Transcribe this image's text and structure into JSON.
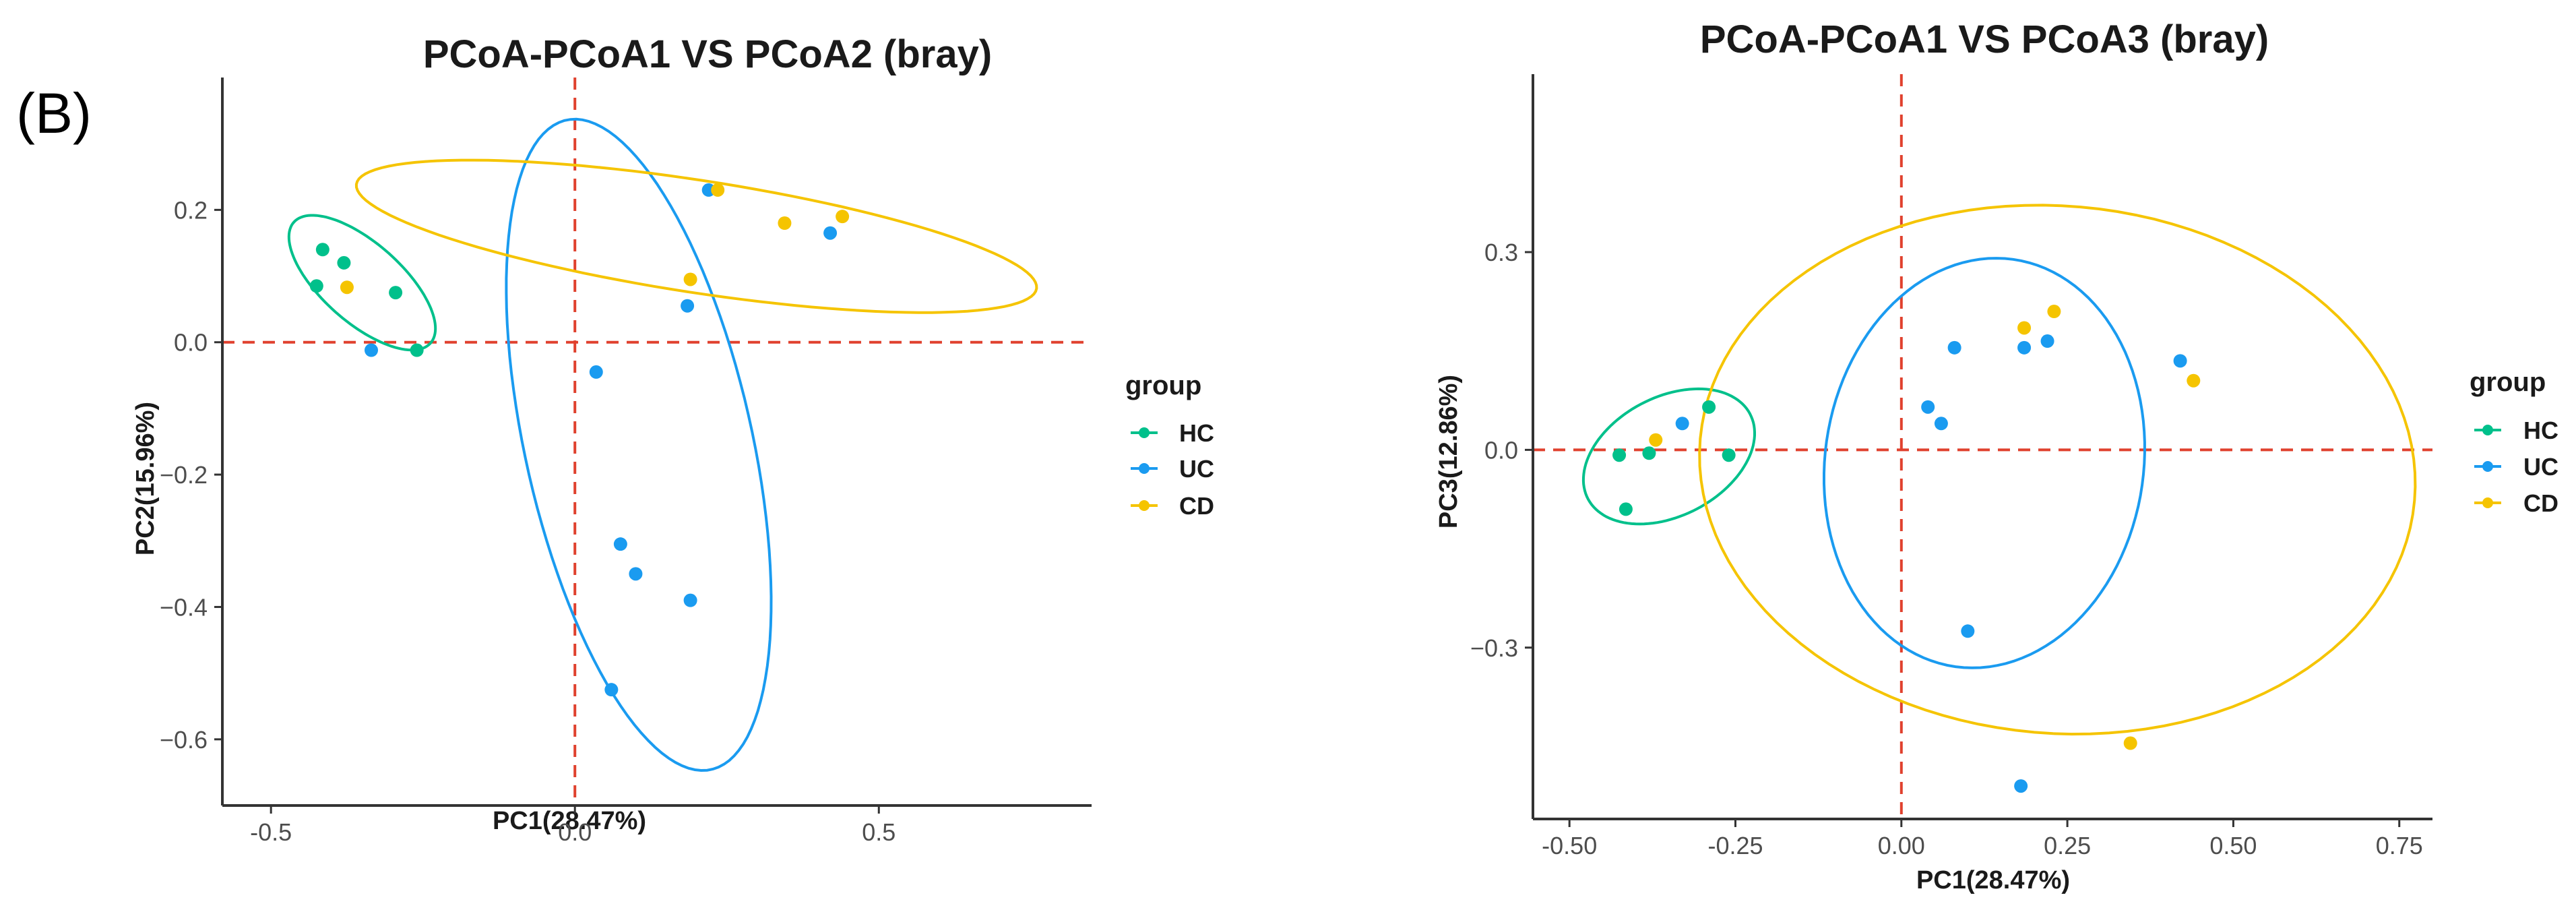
{
  "panel_label": "(B)",
  "colors": {
    "HC": "#00c08b",
    "UC": "#1a9bf0",
    "CD": "#f5c400",
    "refline": "#e0412e",
    "axis": "#333333"
  },
  "chart_data": [
    {
      "type": "scatter",
      "title": "PCoA-PCoA1 VS PCoA2 (bray)",
      "xlabel": "PC1(28.47%)",
      "ylabel": "PC2(15.96%)",
      "xlim": [
        -0.58,
        0.85
      ],
      "ylim": [
        -0.7,
        0.4
      ],
      "xticks": [
        -0.5,
        0.0,
        0.5
      ],
      "xtick_labels": [
        "-0.5",
        "0.0",
        "0.5"
      ],
      "yticks": [
        0.2,
        0.0,
        -0.2,
        -0.4,
        -0.6
      ],
      "ytick_labels": [
        "0.2",
        "0.0",
        "−0.2",
        "−0.4",
        "−0.6"
      ],
      "legend_title": "group",
      "legend": [
        "HC",
        "UC",
        "CD"
      ],
      "series": [
        {
          "name": "HC",
          "points": [
            [
              -0.415,
              0.14
            ],
            [
              -0.38,
              0.12
            ],
            [
              -0.425,
              0.085
            ],
            [
              -0.295,
              0.075
            ],
            [
              -0.26,
              -0.012
            ]
          ]
        },
        {
          "name": "UC",
          "points": [
            [
              -0.335,
              -0.012
            ],
            [
              0.22,
              0.23
            ],
            [
              0.42,
              0.165
            ],
            [
              0.185,
              0.055
            ],
            [
              0.035,
              -0.045
            ],
            [
              0.075,
              -0.305
            ],
            [
              0.1,
              -0.35
            ],
            [
              0.19,
              -0.39
            ],
            [
              0.06,
              -0.525
            ]
          ]
        },
        {
          "name": "CD",
          "points": [
            [
              -0.375,
              0.083
            ],
            [
              0.235,
              0.23
            ],
            [
              0.345,
              0.18
            ],
            [
              0.44,
              0.19
            ],
            [
              0.19,
              0.095
            ]
          ]
        }
      ],
      "ellipses": [
        {
          "group": "HC",
          "cx": -0.35,
          "cy": 0.09,
          "rx": 0.145,
          "ry": 0.062,
          "angle": -38
        },
        {
          "group": "UC",
          "cx": 0.105,
          "cy": -0.155,
          "rx": 0.505,
          "ry": 0.186,
          "angle": 104
        },
        {
          "group": "CD",
          "cx": 0.2,
          "cy": 0.16,
          "rx": 0.565,
          "ry": 0.085,
          "angle": -8
        }
      ],
      "reflines": {
        "x": 0.0,
        "y": 0.0
      }
    },
    {
      "type": "scatter",
      "title": "PCoA-PCoA1 VS PCoA3 (bray)",
      "xlabel": "PC1(28.47%)",
      "ylabel": "PC3(12.86%)",
      "xlim": [
        -0.555,
        0.8
      ],
      "ylim": [
        -0.56,
        0.57
      ],
      "xticks": [
        -0.5,
        -0.25,
        0.0,
        0.25,
        0.5,
        0.75
      ],
      "xtick_labels": [
        "-0.50",
        "-0.25",
        "0.00",
        "0.25",
        "0.50",
        "0.75"
      ],
      "yticks": [
        0.3,
        0.0,
        -0.3
      ],
      "ytick_labels": [
        "0.3",
        "0.0",
        "−0.3"
      ],
      "legend_title": "group",
      "legend": [
        "HC",
        "UC",
        "CD"
      ],
      "series": [
        {
          "name": "HC",
          "points": [
            [
              -0.29,
              0.065
            ],
            [
              -0.425,
              -0.008
            ],
            [
              -0.38,
              -0.005
            ],
            [
              -0.26,
              -0.008
            ],
            [
              -0.415,
              -0.09
            ]
          ]
        },
        {
          "name": "UC",
          "points": [
            [
              -0.33,
              0.04
            ],
            [
              0.04,
              0.065
            ],
            [
              0.06,
              0.04
            ],
            [
              0.08,
              0.155
            ],
            [
              0.185,
              0.155
            ],
            [
              0.22,
              0.165
            ],
            [
              0.42,
              0.135
            ],
            [
              0.1,
              -0.275
            ],
            [
              0.18,
              -0.51
            ]
          ]
        },
        {
          "name": "CD",
          "points": [
            [
              -0.37,
              0.015
            ],
            [
              0.185,
              0.185
            ],
            [
              0.23,
              0.21
            ],
            [
              0.44,
              0.105
            ],
            [
              0.345,
              -0.445
            ]
          ]
        }
      ],
      "ellipses": [
        {
          "group": "HC",
          "cx": -0.35,
          "cy": -0.01,
          "rx": 0.138,
          "ry": 0.09,
          "angle": 28
        },
        {
          "group": "UC",
          "cx": 0.125,
          "cy": -0.02,
          "rx": 0.24,
          "ry": 0.312,
          "angle": -8
        },
        {
          "group": "CD",
          "cx": 0.235,
          "cy": -0.03,
          "rx": 0.54,
          "ry": 0.4,
          "angle": -5
        }
      ],
      "reflines": {
        "x": 0.0,
        "y": 0.0
      }
    }
  ]
}
